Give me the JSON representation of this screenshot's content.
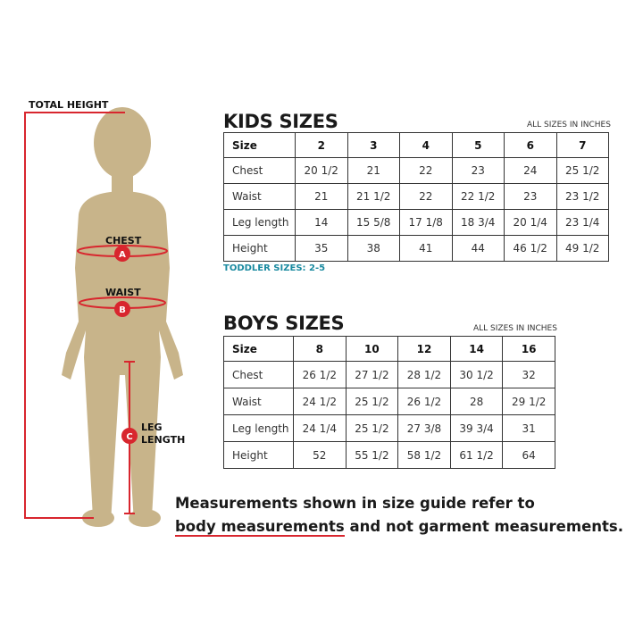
{
  "figure": {
    "total_height": "TOTAL HEIGHT",
    "chest": "CHEST",
    "waist": "WAIST",
    "leg_length": "LEG LENGTH",
    "markers": [
      "A",
      "B",
      "C"
    ],
    "accent_color": "#d8262e",
    "body_color": "#c8b48a"
  },
  "kids": {
    "title": "KIDS SIZES",
    "note": "ALL SIZES IN INCHES",
    "header": [
      "Size",
      "2",
      "3",
      "4",
      "5",
      "6",
      "7"
    ],
    "rows": [
      [
        "Chest",
        "20 1/2",
        "21",
        "22",
        "23",
        "24",
        "25 1/2"
      ],
      [
        "Waist",
        "21",
        "21 1/2",
        "22",
        "22 1/2",
        "23",
        "23 1/2"
      ],
      [
        "Leg length",
        "14",
        "15 5/8",
        "17 1/8",
        "18 3/4",
        "20 1/4",
        "23 1/4"
      ],
      [
        "Height",
        "35",
        "38",
        "41",
        "44",
        "46 1/2",
        "49 1/2"
      ]
    ],
    "toddler_note": "TODDLER SIZES: 2-5",
    "toddler_color": "#1a8aa0"
  },
  "boys": {
    "title": "BOYS SIZES",
    "note": "ALL SIZES IN INCHES",
    "header": [
      "Size",
      "8",
      "10",
      "12",
      "14",
      "16"
    ],
    "rows": [
      [
        "Chest",
        "26 1/2",
        "27 1/2",
        "28 1/2",
        "30 1/2",
        "32"
      ],
      [
        "Waist",
        "24 1/2",
        "25 1/2",
        "26 1/2",
        "28",
        "29 1/2"
      ],
      [
        "Leg length",
        "24 1/4",
        "25 1/2",
        "27 3/8",
        "39 3/4",
        "31"
      ],
      [
        "Height",
        "52",
        "55 1/2",
        "58 1/2",
        "61 1/2",
        "64"
      ]
    ]
  },
  "footer": {
    "line1": "Measurements shown in size guide refer to",
    "underlined": "body measurements",
    "rest": " and not garment measurements."
  }
}
